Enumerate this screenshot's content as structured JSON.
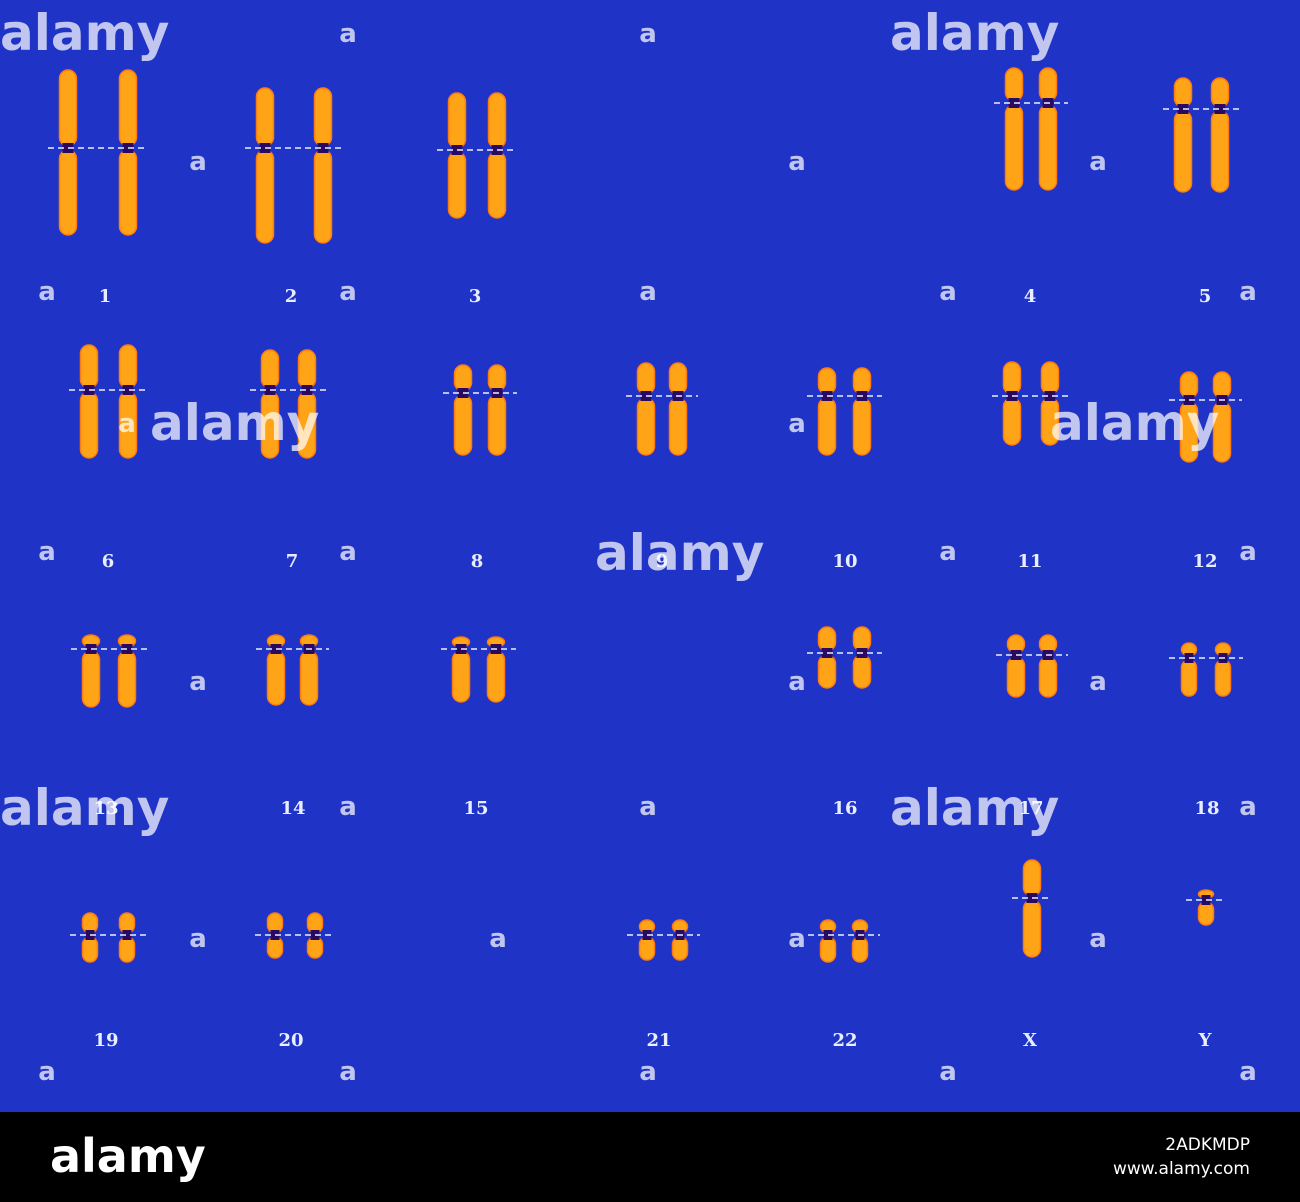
{
  "karyotype": {
    "labels": [
      "1",
      "2",
      "3",
      "4",
      "5",
      "6",
      "7",
      "8",
      "9",
      "10",
      "11",
      "12",
      "13",
      "14",
      "15",
      "16",
      "17",
      "18",
      "19",
      "20",
      "21",
      "22",
      "X",
      "Y"
    ]
  },
  "watermark": {
    "logo": "alamy",
    "mark": "a"
  },
  "footer": {
    "logo": "alamy",
    "image_id": "2ADKMDP",
    "url": "www.alamy.com"
  }
}
